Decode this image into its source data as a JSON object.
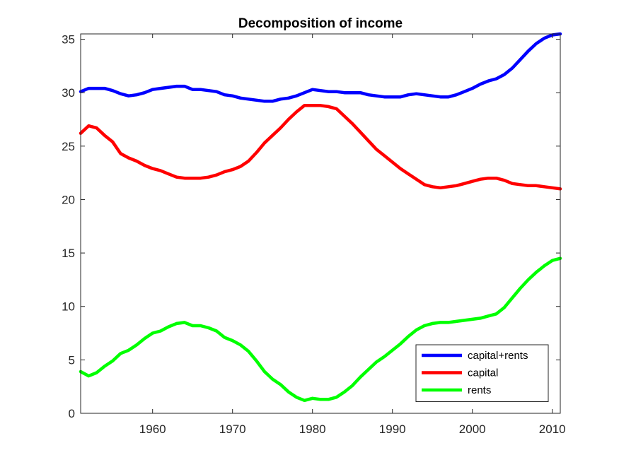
{
  "chart_data": {
    "type": "line",
    "title": "Decomposition of income",
    "xlabel": "",
    "ylabel": "",
    "xlim": [
      1951,
      2011
    ],
    "ylim": [
      0,
      35.5
    ],
    "xticks": [
      1960,
      1970,
      1980,
      1990,
      2000,
      2010
    ],
    "yticks": [
      0,
      5,
      10,
      15,
      20,
      25,
      30,
      35
    ],
    "xtick_labels": [
      "1960",
      "1970",
      "1980",
      "1990",
      "2000",
      "2010"
    ],
    "ytick_labels": [
      "0",
      "5",
      "10",
      "15",
      "20",
      "25",
      "30",
      "35"
    ],
    "grid": false,
    "legend_position": "bottom-right",
    "series": [
      {
        "name": "capital+rents",
        "color": "#0000FF",
        "x": [
          1951,
          1952,
          1953,
          1954,
          1955,
          1956,
          1957,
          1958,
          1959,
          1960,
          1961,
          1962,
          1963,
          1964,
          1965,
          1966,
          1967,
          1968,
          1969,
          1970,
          1971,
          1972,
          1973,
          1974,
          1975,
          1976,
          1977,
          1978,
          1979,
          1980,
          1981,
          1982,
          1983,
          1984,
          1985,
          1986,
          1987,
          1988,
          1989,
          1990,
          1991,
          1992,
          1993,
          1994,
          1995,
          1996,
          1997,
          1998,
          1999,
          2000,
          2001,
          2002,
          2003,
          2004,
          2005,
          2006,
          2007,
          2008,
          2009,
          2010,
          2011
        ],
        "y": [
          30.1,
          30.4,
          30.4,
          30.4,
          30.2,
          29.9,
          29.7,
          29.8,
          30.0,
          30.3,
          30.4,
          30.5,
          30.6,
          30.6,
          30.3,
          30.3,
          30.2,
          30.1,
          29.8,
          29.7,
          29.5,
          29.4,
          29.3,
          29.2,
          29.2,
          29.4,
          29.5,
          29.7,
          30.0,
          30.3,
          30.2,
          30.1,
          30.1,
          30.0,
          30.0,
          30.0,
          29.8,
          29.7,
          29.6,
          29.6,
          29.6,
          29.8,
          29.9,
          29.8,
          29.7,
          29.6,
          29.6,
          29.8,
          30.1,
          30.4,
          30.8,
          31.1,
          31.3,
          31.7,
          32.3,
          33.1,
          33.9,
          34.6,
          35.1,
          35.4,
          35.5
        ]
      },
      {
        "name": "capital",
        "color": "#FF0000",
        "x": [
          1951,
          1952,
          1953,
          1954,
          1955,
          1956,
          1957,
          1958,
          1959,
          1960,
          1961,
          1962,
          1963,
          1964,
          1965,
          1966,
          1967,
          1968,
          1969,
          1970,
          1971,
          1972,
          1973,
          1974,
          1975,
          1976,
          1977,
          1978,
          1979,
          1980,
          1981,
          1982,
          1983,
          1984,
          1985,
          1986,
          1987,
          1988,
          1989,
          1990,
          1991,
          1992,
          1993,
          1994,
          1995,
          1996,
          1997,
          1998,
          1999,
          2000,
          2001,
          2002,
          2003,
          2004,
          2005,
          2006,
          2007,
          2008,
          2009,
          2010,
          2011
        ],
        "y": [
          26.2,
          26.9,
          26.7,
          26.0,
          25.4,
          24.3,
          23.9,
          23.6,
          23.2,
          22.9,
          22.7,
          22.4,
          22.1,
          22.0,
          22.0,
          22.0,
          22.1,
          22.3,
          22.6,
          22.8,
          23.1,
          23.6,
          24.4,
          25.3,
          26.0,
          26.7,
          27.5,
          28.2,
          28.8,
          28.8,
          28.8,
          28.7,
          28.5,
          27.8,
          27.1,
          26.3,
          25.5,
          24.7,
          24.1,
          23.5,
          22.9,
          22.4,
          21.9,
          21.4,
          21.2,
          21.1,
          21.2,
          21.3,
          21.5,
          21.7,
          21.9,
          22.0,
          22.0,
          21.8,
          21.5,
          21.4,
          21.3,
          21.3,
          21.2,
          21.1,
          21.0
        ]
      },
      {
        "name": "rents",
        "color": "#00FF00",
        "x": [
          1951,
          1952,
          1953,
          1954,
          1955,
          1956,
          1957,
          1958,
          1959,
          1960,
          1961,
          1962,
          1963,
          1964,
          1965,
          1966,
          1967,
          1968,
          1969,
          1970,
          1971,
          1972,
          1973,
          1974,
          1975,
          1976,
          1977,
          1978,
          1979,
          1980,
          1981,
          1982,
          1983,
          1984,
          1985,
          1986,
          1987,
          1988,
          1989,
          1990,
          1991,
          1992,
          1993,
          1994,
          1995,
          1996,
          1997,
          1998,
          1999,
          2000,
          2001,
          2002,
          2003,
          2004,
          2005,
          2006,
          2007,
          2008,
          2009,
          2010,
          2011
        ],
        "y": [
          3.9,
          3.5,
          3.8,
          4.4,
          4.9,
          5.6,
          5.9,
          6.4,
          7.0,
          7.5,
          7.7,
          8.1,
          8.4,
          8.5,
          8.2,
          8.2,
          8.0,
          7.7,
          7.1,
          6.8,
          6.4,
          5.8,
          4.9,
          3.9,
          3.2,
          2.7,
          2.0,
          1.5,
          1.2,
          1.4,
          1.3,
          1.3,
          1.5,
          2.0,
          2.6,
          3.4,
          4.1,
          4.8,
          5.3,
          5.9,
          6.5,
          7.2,
          7.8,
          8.2,
          8.4,
          8.5,
          8.5,
          8.6,
          8.7,
          8.8,
          8.9,
          9.1,
          9.3,
          9.9,
          10.8,
          11.7,
          12.5,
          13.2,
          13.8,
          14.3,
          14.5
        ]
      }
    ]
  }
}
